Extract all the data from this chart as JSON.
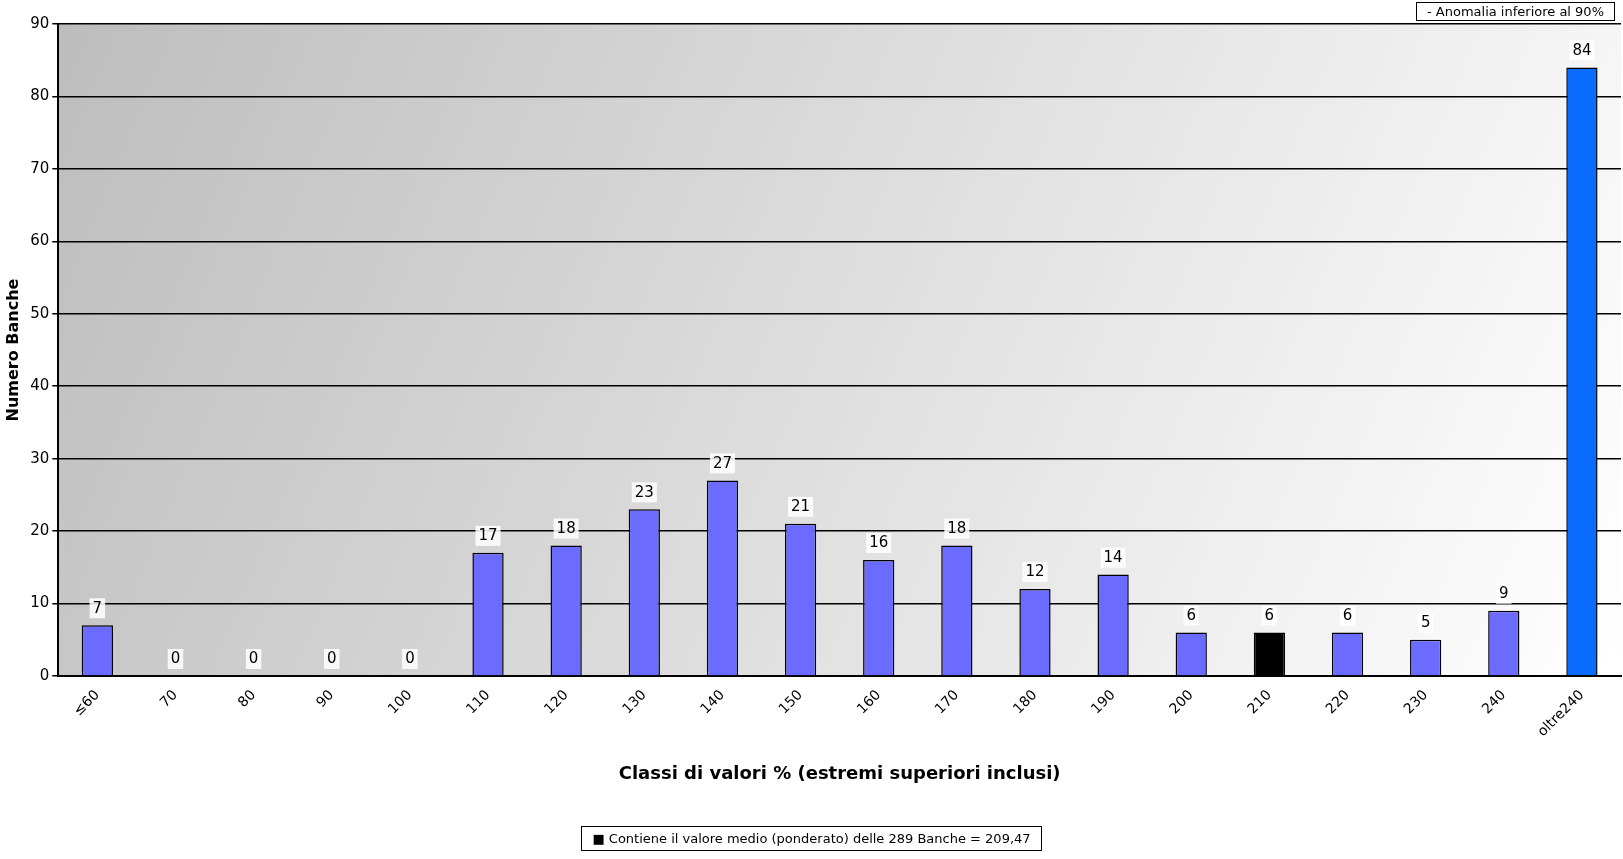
{
  "chart_data": {
    "type": "bar",
    "xlabel": "Classi di valori % (estremi superiori inclusi)",
    "ylabel": "Numero Banche",
    "categories": [
      "≤60",
      "70",
      "80",
      "90",
      "100",
      "110",
      "120",
      "130",
      "140",
      "150",
      "160",
      "170",
      "180",
      "190",
      "200",
      "210",
      "220",
      "230",
      "240",
      "oltre240"
    ],
    "values": [
      7,
      0,
      0,
      0,
      0,
      17,
      18,
      23,
      27,
      21,
      16,
      18,
      12,
      14,
      6,
      6,
      6,
      5,
      9,
      84
    ],
    "colors": [
      "#6b6bff",
      "#6b6bff",
      "#6b6bff",
      "#6b6bff",
      "#6b6bff",
      "#6b6bff",
      "#6b6bff",
      "#6b6bff",
      "#6b6bff",
      "#6b6bff",
      "#6b6bff",
      "#6b6bff",
      "#6b6bff",
      "#6b6bff",
      "#6b6bff",
      "#000000",
      "#6b6bff",
      "#6b6bff",
      "#6b6bff",
      "#0a6cff"
    ],
    "ylim": [
      0,
      90
    ],
    "yticks": [
      0,
      10,
      20,
      30,
      40,
      50,
      60,
      70,
      80,
      90
    ],
    "grid": "y",
    "data_labels": true,
    "annotations": [
      "- Anomalia inferiore al 90%",
      "■ Contiene il valore medio (ponderato) delle 289 Banche = 209,47"
    ]
  }
}
